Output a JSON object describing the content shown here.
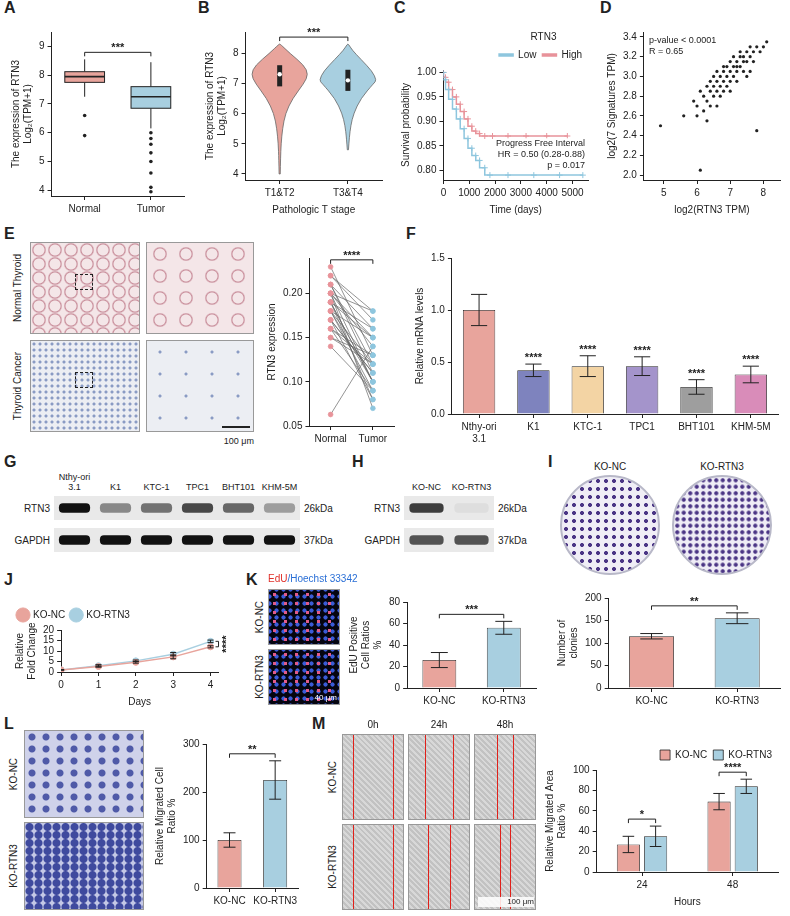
{
  "chart_data": [
    {
      "panel": "A",
      "type": "box",
      "categories": [
        "Normal",
        "Tumor"
      ],
      "colors": [
        "#E8A49C",
        "#A8CFE0"
      ],
      "boxes": [
        {
          "min": 7.25,
          "q1": 7.75,
          "median": 7.95,
          "q3": 8.12,
          "max": 8.55,
          "outliers": [
            6.6,
            5.9
          ]
        },
        {
          "min": 6.15,
          "q1": 6.85,
          "median": 7.25,
          "q3": 7.6,
          "max": 8.45,
          "outliers": [
            6.0,
            5.8,
            5.6,
            5.3,
            5.0,
            4.6,
            4.1,
            3.95
          ]
        }
      ],
      "y_label": [
        "The expression of RTN3",
        "Log₂(TPM+1)"
      ],
      "ylim": [
        3.8,
        9.5
      ],
      "yticks": [
        4,
        5,
        6,
        7,
        8,
        9
      ],
      "significance": "***"
    },
    {
      "panel": "B",
      "type": "violin",
      "categories": [
        "T1&T2",
        "T3&T4"
      ],
      "colors": [
        "#E8A49C",
        "#A8CFE0"
      ],
      "violins": [
        {
          "y": [
            4.0,
            4.5,
            5.0,
            5.5,
            6.0,
            6.5,
            7.0,
            7.3,
            7.6,
            8.0,
            8.3
          ],
          "density": [
            0.02,
            0.03,
            0.05,
            0.1,
            0.2,
            0.45,
            0.85,
            1.0,
            0.85,
            0.35,
            0.02
          ],
          "q1": 6.9,
          "median": 7.3,
          "q3": 7.6
        },
        {
          "y": [
            4.8,
            5.2,
            5.6,
            6.0,
            6.5,
            7.0,
            7.1,
            7.4,
            7.8,
            8.1,
            8.3
          ],
          "density": [
            0.02,
            0.05,
            0.1,
            0.2,
            0.45,
            0.9,
            1.0,
            0.85,
            0.45,
            0.15,
            0.02
          ],
          "q1": 6.75,
          "median": 7.1,
          "q3": 7.45
        }
      ],
      "x_label": "Pathologic T stage",
      "y_label": [
        "The expression of RTN3",
        "Log₂(TPM+1)"
      ],
      "ylim": [
        3.8,
        8.7
      ],
      "yticks": [
        4,
        5,
        6,
        7,
        8
      ],
      "significance": "***"
    },
    {
      "panel": "C",
      "type": "line",
      "line_style": "stepped",
      "marker": "cross",
      "legend": "top-right",
      "legend_title": "RTN3",
      "series": [
        {
          "name": "Low",
          "color": "#8EC6DE",
          "x": [
            0,
            80,
            200,
            350,
            500,
            650,
            800,
            950,
            1100,
            1250,
            1400,
            1600,
            1800,
            2500,
            3500,
            4500,
            5400
          ],
          "values": [
            1,
            0.985,
            0.965,
            0.945,
            0.925,
            0.905,
            0.885,
            0.865,
            0.845,
            0.83,
            0.82,
            0.805,
            0.79,
            0.79,
            0.79,
            0.79,
            0.79
          ]
        },
        {
          "name": "High",
          "color": "#E8939A",
          "x": [
            0,
            80,
            200,
            350,
            500,
            650,
            800,
            950,
            1100,
            1250,
            1400,
            1600,
            1900,
            2500,
            3200,
            4000,
            4800
          ],
          "values": [
            1,
            0.99,
            0.98,
            0.965,
            0.95,
            0.935,
            0.92,
            0.905,
            0.89,
            0.88,
            0.875,
            0.87,
            0.87,
            0.87,
            0.87,
            0.87,
            0.87
          ]
        }
      ],
      "x_label": "Time (days)",
      "y_label": "Survival probability",
      "xlim": [
        0,
        5600
      ],
      "xticks": [
        0,
        1000,
        2000,
        3000,
        4000,
        5000
      ],
      "ylim": [
        0.78,
        1.005
      ],
      "yticks": [
        {
          "value": 0.8,
          "label": "0.80"
        },
        0.85,
        {
          "value": 0.9,
          "label": "0.90"
        },
        0.95,
        {
          "value": 1,
          "label": "1.00"
        }
      ],
      "annotations": [
        "Progress Free Interval",
        "HR = 0.50 (0.28-0.88)",
        "p = 0.017"
      ]
    },
    {
      "panel": "D",
      "type": "scatter",
      "color": "#222222",
      "x": [
        4.9,
        5.6,
        5.9,
        6.0,
        6.1,
        6.2,
        6.2,
        6.3,
        6.3,
        6.4,
        6.4,
        6.5,
        6.5,
        6.5,
        6.6,
        6.6,
        6.6,
        6.7,
        6.7,
        6.7,
        6.8,
        6.8,
        6.8,
        6.9,
        6.9,
        6.9,
        7.0,
        7.0,
        7.0,
        7.1,
        7.1,
        7.1,
        7.2,
        7.2,
        7.2,
        7.3,
        7.3,
        7.3,
        7.4,
        7.4,
        7.4,
        7.5,
        7.5,
        7.6,
        7.6,
        7.7,
        7.7,
        7.8,
        7.9,
        8.0,
        8.1,
        6.0,
        6.4,
        6.8,
        7.2,
        7.6,
        6.3,
        7.0,
        7.5,
        6.6,
        6.1,
        7.8
      ],
      "values": [
        2.5,
        2.6,
        2.75,
        2.7,
        2.85,
        2.8,
        2.65,
        2.9,
        2.75,
        2.85,
        2.95,
        2.9,
        2.8,
        3.0,
        2.95,
        2.85,
        3.05,
        3.0,
        2.9,
        2.8,
        3.05,
        2.95,
        3.1,
        3.0,
        2.9,
        3.1,
        3.05,
        3.15,
        2.95,
        3.1,
        3.0,
        3.2,
        3.15,
        3.05,
        3.1,
        3.2,
        3.1,
        3.25,
        3.15,
        3.2,
        3.05,
        3.25,
        3.15,
        3.2,
        3.3,
        3.25,
        3.15,
        3.3,
        3.25,
        3.3,
        3.35,
        2.6,
        2.7,
        2.85,
        2.95,
        3.05,
        2.55,
        2.85,
        3.0,
        2.7,
        2.05,
        2.45
      ],
      "x_label": "log2(RTN3 TPM)",
      "y_label": "log2(7 Signatures TPM)",
      "xlim": [
        4.4,
        8.5
      ],
      "xticks": [
        5,
        6,
        7,
        8
      ],
      "ylim": [
        1.95,
        3.45
      ],
      "yticks": [
        {
          "value": 2,
          "label": "2.0"
        },
        2.2,
        2.4,
        2.6,
        2.8,
        {
          "value": 3,
          "label": "3.0"
        },
        3.2,
        3.4
      ],
      "annotations": [
        "p-value < 0.0001",
        "R = 0.65"
      ]
    },
    {
      "panel": "E",
      "type": "paired",
      "categories": [
        "Normal",
        "Tumor"
      ],
      "colors": [
        "#E8939A",
        "#8EC6DE"
      ],
      "color": "#666666",
      "values": [
        [
          0.21,
          0.2,
          0.19,
          0.22,
          0.18,
          0.17,
          0.2,
          0.19,
          0.16,
          0.21,
          0.18,
          0.15,
          0.2,
          0.17,
          0.19,
          0.22,
          0.14,
          0.18,
          0.063,
          0.2,
          0.16,
          0.19,
          0.21,
          0.17,
          0.18,
          0.15,
          0.2,
          0.19,
          0.23,
          0.16
        ],
        [
          0.12,
          0.15,
          0.1,
          0.18,
          0.09,
          0.11,
          0.14,
          0.08,
          0.12,
          0.16,
          0.1,
          0.13,
          0.07,
          0.11,
          0.15,
          0.17,
          0.09,
          0.12,
          0.14,
          0.1,
          0.13,
          0.16,
          0.11,
          0.08,
          0.15,
          0.12,
          0.18,
          0.1,
          0.13,
          0.09
        ]
      ],
      "y_label": "RTN3 expression",
      "ylim": [
        0.05,
        0.24
      ],
      "yticks": [
        0.05,
        {
          "value": 0.1,
          "label": "0.10"
        },
        0.15,
        {
          "value": 0.2,
          "label": "0.20"
        }
      ],
      "significance": "****"
    },
    {
      "panel": "F",
      "type": "bar",
      "categories": [
        "Nthy-ori 3.1",
        "K1",
        "KTC-1",
        "TPC1",
        "BHT101",
        "KHM-5M"
      ],
      "values": [
        1.0,
        0.42,
        0.46,
        0.46,
        0.26,
        0.38
      ],
      "errors": [
        0.15,
        0.06,
        0.1,
        0.09,
        0.07,
        0.08
      ],
      "colors": [
        "#E8A49C",
        "#7E83BE",
        "#F3D4A4",
        "#A494CB",
        "#9E9E9E",
        "#D98CB9"
      ],
      "y_label": "Relative mRNA levels",
      "ylim": [
        0,
        1.5
      ],
      "yticks": [
        {
          "value": 0,
          "label": "0.0"
        },
        0.5,
        {
          "value": 1,
          "label": "1.0"
        },
        1.5
      ],
      "significance": [
        null,
        "****",
        "****",
        "****",
        "****",
        "****"
      ]
    },
    {
      "panel": "I",
      "type": "bar",
      "categories": [
        "KO-NC",
        "KO-RTN3"
      ],
      "values": [
        115,
        155
      ],
      "errors": [
        6,
        12
      ],
      "colors": [
        "#E8A49C",
        "#A8CFE0"
      ],
      "y_label": "Number of clonies",
      "ylim": [
        0,
        200
      ],
      "yticks": [
        0,
        50,
        100,
        150,
        200
      ],
      "significance": "**"
    },
    {
      "panel": "J",
      "type": "line",
      "marker": "circle",
      "legend": "top-left",
      "x": [
        0,
        1,
        2,
        3,
        4
      ],
      "series": [
        {
          "name": "KO-NC",
          "color": "#E8A49C",
          "values": [
            1,
            2.6,
            4.6,
            7.2,
            12.0
          ],
          "errors": [
            0.05,
            0.3,
            0.4,
            0.9,
            0.5
          ]
        },
        {
          "name": "KO-RTN3",
          "color": "#A8CFE0",
          "values": [
            1,
            3.0,
            5.3,
            8.5,
            14.6
          ],
          "errors": [
            0.05,
            0.5,
            0.4,
            0.8,
            0.6
          ]
        }
      ],
      "x_label": "Days",
      "y_label": "Relative Fold Change",
      "xlim": [
        0,
        4.2
      ],
      "xticks": [
        0,
        1,
        2,
        3,
        4
      ],
      "ylim": [
        0,
        20
      ],
      "yticks": [
        0,
        5,
        10,
        15,
        20
      ],
      "significance": "****"
    },
    {
      "panel": "K",
      "type": "bar",
      "categories": [
        "KO-NC",
        "KO-RTN3"
      ],
      "values": [
        26,
        56
      ],
      "errors": [
        7,
        6
      ],
      "colors": [
        "#E8A49C",
        "#A8CFE0"
      ],
      "y_label": "EdU Positive Cell Ratios %",
      "ylim": [
        0,
        80
      ],
      "yticks": [
        0,
        20,
        40,
        60,
        80
      ],
      "significance": "***"
    },
    {
      "panel": "L",
      "type": "bar",
      "categories": [
        "KO-NC",
        "KO-RTN3"
      ],
      "values": [
        100,
        225
      ],
      "errors": [
        15,
        40
      ],
      "colors": [
        "#E8A49C",
        "#A8CFE0"
      ],
      "y_label": "Relative Migrated Cell Ratio %",
      "ylim": [
        0,
        300
      ],
      "yticks": [
        0,
        100,
        200,
        300
      ],
      "significance": "**"
    },
    {
      "panel": "M",
      "type": "bar",
      "categories": [
        "24",
        "48"
      ],
      "x_label": "Hours",
      "legend": "top-right",
      "series": [
        {
          "name": "KO-NC",
          "color": "#E8A49C",
          "values": [
            27,
            69
          ],
          "errors": [
            8,
            8
          ]
        },
        {
          "name": "KO-RTN3",
          "color": "#A8CFE0",
          "values": [
            35,
            84
          ],
          "errors": [
            10,
            7
          ]
        }
      ],
      "y_label": "Relative Migrated Area Ratio %",
      "ylim": [
        0,
        100
      ],
      "yticks": [
        0,
        20,
        40,
        60,
        80,
        100
      ],
      "significance": [
        "*",
        "****"
      ]
    }
  ],
  "blots": [
    {
      "panel": "G",
      "lanes": [
        "Nthy-ori 3.1",
        "K1",
        "KTC-1",
        "TPC1",
        "BHT101",
        "KHM-5M"
      ],
      "rows": [
        {
          "protein": "RTN3",
          "size": "26kDa",
          "intensity": [
            1.0,
            0.45,
            0.55,
            0.75,
            0.6,
            0.35
          ]
        },
        {
          "protein": "GAPDH",
          "size": "37kDa",
          "intensity": [
            1.0,
            1.0,
            1.0,
            1.0,
            1.0,
            1.0
          ]
        }
      ]
    },
    {
      "panel": "H",
      "lanes": [
        "KO-NC",
        "KO-RTN3"
      ],
      "rows": [
        {
          "protein": "RTN3",
          "size": "26kDa",
          "intensity": [
            0.8,
            0.05
          ]
        },
        {
          "protein": "GAPDH",
          "size": "37kDa",
          "intensity": [
            0.7,
            0.7
          ]
        }
      ]
    }
  ],
  "micrographs": [
    {
      "panel": "E",
      "rows": [
        "Normal Thyroid",
        "Thyroid Cancer"
      ],
      "scale_bar": "100 μm"
    },
    {
      "panel": "I",
      "columns": [
        "KO-NC",
        "KO-RTN3"
      ]
    },
    {
      "panel": "K",
      "stain_label": [
        {
          "text": "EdU",
          "color": "#E0302A"
        },
        {
          "text": "/Hoechst 33342",
          "color": "#2A6FD6"
        }
      ],
      "rows": [
        "KO-NC",
        "KO-RTN3"
      ],
      "scale_bar": "40 μm"
    },
    {
      "panel": "L",
      "rows": [
        "KO-NC",
        "KO-RTN3"
      ]
    },
    {
      "panel": "M",
      "columns": [
        "0h",
        "24h",
        "48h"
      ],
      "rows": [
        "KO-NC",
        "KO-RTN3"
      ],
      "scale_bar": "100 μm"
    }
  ]
}
